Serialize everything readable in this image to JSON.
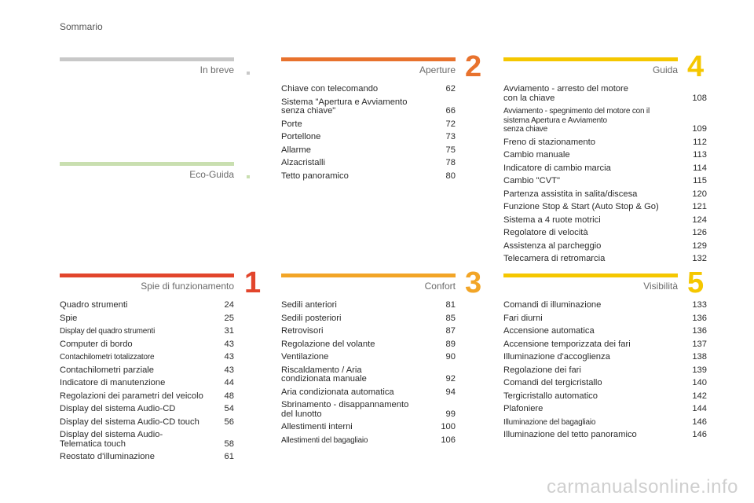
{
  "header": "Sommario",
  "colors": {
    "in_breve": "#c8c8c8",
    "eco_guida": "#c9dfb0",
    "spie": "#e2452c",
    "aperture": "#e8722d",
    "confort": "#f2a527",
    "guida": "#f5c700",
    "visibilita": "#f5c700"
  },
  "sections": {
    "in_breve": {
      "title": "In breve",
      "number": ""
    },
    "eco_guida": {
      "title": "Eco-Guida",
      "number": ""
    },
    "spie": {
      "title": "Spie di funzionamento",
      "number": "1",
      "entries": [
        {
          "label": "Quadro strumenti",
          "page": "24"
        },
        {
          "label": "Spie",
          "page": "25"
        },
        {
          "label": "Display del quadro strumenti",
          "page": "31"
        },
        {
          "label": "Computer di bordo",
          "page": "43"
        },
        {
          "label": "Contachilometri totalizzatore",
          "page": "43"
        },
        {
          "label": "Contachilometri parziale",
          "page": "43"
        },
        {
          "label": "Indicatore di manutenzione",
          "page": "44"
        },
        {
          "label": "Regolazioni dei parametri del veicolo",
          "page": "48"
        },
        {
          "label": "Display del sistema Audio-CD",
          "page": "54"
        },
        {
          "label": "Display del sistema Audio-CD touch",
          "page": "56"
        },
        {
          "label": "Display del sistema Audio-\nTelematica touch",
          "page": "58"
        },
        {
          "label": "Reostato d'illuminazione",
          "page": "61"
        }
      ]
    },
    "aperture": {
      "title": "Aperture",
      "number": "2",
      "entries": [
        {
          "label": "Chiave con telecomando",
          "page": "62"
        },
        {
          "label": "Sistema \"Apertura e Avviamento\nsenza chiave\"",
          "page": "66"
        },
        {
          "label": "Porte",
          "page": "72"
        },
        {
          "label": "Portellone",
          "page": "73"
        },
        {
          "label": "Allarme",
          "page": "75"
        },
        {
          "label": "Alzacristalli",
          "page": "78"
        },
        {
          "label": "Tetto panoramico",
          "page": "80"
        }
      ]
    },
    "confort": {
      "title": "Confort",
      "number": "3",
      "entries": [
        {
          "label": "Sedili anteriori",
          "page": "81"
        },
        {
          "label": "Sedili posteriori",
          "page": "85"
        },
        {
          "label": "Retrovisori",
          "page": "87"
        },
        {
          "label": "Regolazione del volante",
          "page": "89"
        },
        {
          "label": "Ventilazione",
          "page": "90"
        },
        {
          "label": "Riscaldamento / Aria\ncondizionata manuale",
          "page": "92"
        },
        {
          "label": "Aria condizionata automatica",
          "page": "94"
        },
        {
          "label": "Sbrinamento - disappannamento\ndel lunotto",
          "page": "99"
        },
        {
          "label": "Allestimenti interni",
          "page": "100"
        },
        {
          "label": "Allestimenti del bagagliaio",
          "page": "106"
        }
      ]
    },
    "guida": {
      "title": "Guida",
      "number": "4",
      "entries": [
        {
          "label": "Avviamento - arresto del motore\ncon la chiave",
          "page": "108"
        },
        {
          "label": "Avviamento - spegnimento del motore con il\nsistema Apertura e Avviamento\nsenza chiave",
          "page": "109"
        },
        {
          "label": "Freno di stazionamento",
          "page": "112"
        },
        {
          "label": "Cambio manuale",
          "page": "113"
        },
        {
          "label": "Indicatore di cambio marcia",
          "page": "114"
        },
        {
          "label": "Cambio \"CVT\"",
          "page": "115"
        },
        {
          "label": "Partenza assistita in salita/discesa",
          "page": "120"
        },
        {
          "label": "Funzione Stop & Start (Auto Stop & Go)",
          "page": "121"
        },
        {
          "label": "Sistema a 4 ruote motrici",
          "page": "124"
        },
        {
          "label": "Regolatore di velocità",
          "page": "126"
        },
        {
          "label": "Assistenza al parcheggio",
          "page": "129"
        },
        {
          "label": "Telecamera di retromarcia",
          "page": "132"
        }
      ]
    },
    "visibilita": {
      "title": "Visibilità",
      "number": "5",
      "entries": [
        {
          "label": "Comandi di illuminazione",
          "page": "133"
        },
        {
          "label": "Fari diurni",
          "page": "136"
        },
        {
          "label": "Accensione automatica",
          "page": "136"
        },
        {
          "label": "Accensione temporizzata dei fari",
          "page": "137"
        },
        {
          "label": "Illuminazione d'accoglienza",
          "page": "138"
        },
        {
          "label": "Regolazione dei fari",
          "page": "139"
        },
        {
          "label": "Comandi del tergicristallo",
          "page": "140"
        },
        {
          "label": "Tergicristallo automatico",
          "page": "142"
        },
        {
          "label": "Plafoniere",
          "page": "144"
        },
        {
          "label": "Illuminazione del bagagliaio",
          "page": "146"
        },
        {
          "label": "Illuminazione del tetto panoramico",
          "page": "146"
        }
      ]
    }
  },
  "watermark": "carmanualsonline.info"
}
